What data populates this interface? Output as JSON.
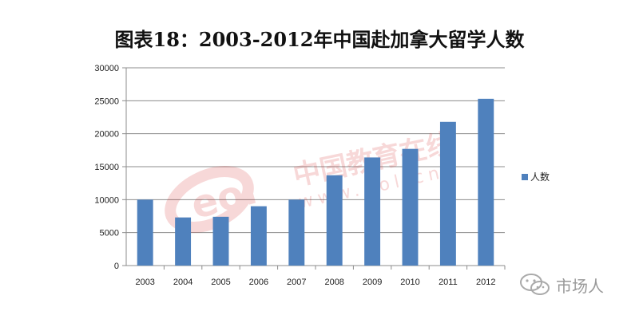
{
  "chart_data": {
    "type": "bar",
    "title": "图表18：2003-2012年中国赴加拿大留学人数",
    "categories": [
      "2003",
      "2004",
      "2005",
      "2006",
      "2007",
      "2008",
      "2009",
      "2010",
      "2011",
      "2012"
    ],
    "series": [
      {
        "name": "人数",
        "values": [
          10000,
          7300,
          7400,
          9000,
          10000,
          13700,
          16400,
          17700,
          21800,
          25300
        ],
        "color": "#4f81bd"
      }
    ],
    "xlabel": "",
    "ylabel": "",
    "ylim": [
      0,
      30000
    ],
    "yticks": [
      0,
      5000,
      10000,
      15000,
      20000,
      25000,
      30000
    ],
    "grid": true,
    "legend_position": "right"
  },
  "watermark": {
    "logo_text": "eol",
    "cn_text": "中国教育在线",
    "url_text": "www.eol.cn"
  },
  "footer": {
    "account_name": "市场人",
    "icon": "wechat-icon"
  }
}
